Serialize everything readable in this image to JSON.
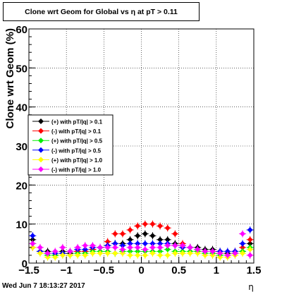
{
  "chart_data": {
    "type": "scatter",
    "title": "Clone wrt Geom for Global vs   η at pT > 0.11",
    "xlabel": "η",
    "ylabel": "Clone wrt Geom (%)",
    "xlim": [
      -1.5,
      1.5
    ],
    "ylim": [
      0,
      60
    ],
    "x_ticks": [
      "−1.5",
      "−1",
      "−0.5",
      "0",
      "0.5",
      "1",
      "1.5"
    ],
    "y_ticks": [
      "0",
      "10",
      "20",
      "30",
      "40",
      "50",
      "60"
    ],
    "grid": true,
    "legend_position": "center-left",
    "footer": "Wed Jun  7 18:13:27 2017",
    "series": [
      {
        "name": "(+) with pT/|q| > 0.1",
        "color": "#000000",
        "points": [
          [
            -1.45,
            6
          ],
          [
            -1.35,
            3
          ],
          [
            -1.25,
            3
          ],
          [
            -1.15,
            2
          ],
          [
            -1.05,
            3
          ],
          [
            -0.95,
            2.5
          ],
          [
            -0.85,
            3
          ],
          [
            -0.75,
            3
          ],
          [
            -0.65,
            3.5
          ],
          [
            -0.55,
            4
          ],
          [
            -0.45,
            4.5
          ],
          [
            -0.35,
            5
          ],
          [
            -0.25,
            5
          ],
          [
            -0.15,
            6
          ],
          [
            -0.05,
            7
          ],
          [
            0.05,
            7.5
          ],
          [
            0.15,
            7
          ],
          [
            0.25,
            6
          ],
          [
            0.35,
            6
          ],
          [
            0.45,
            5
          ],
          [
            0.55,
            4.5
          ],
          [
            0.65,
            4
          ],
          [
            0.75,
            4
          ],
          [
            0.85,
            3.5
          ],
          [
            0.95,
            3.5
          ],
          [
            1.05,
            3
          ],
          [
            1.15,
            2.5
          ],
          [
            1.25,
            2.5
          ],
          [
            1.35,
            3
          ],
          [
            1.45,
            5
          ]
        ]
      },
      {
        "name": "(-) with pT/|q| > 0.1",
        "color": "#ff0000",
        "points": [
          [
            -1.45,
            4
          ],
          [
            -1.35,
            3
          ],
          [
            -1.25,
            2.5
          ],
          [
            -1.15,
            2
          ],
          [
            -1.05,
            2.5
          ],
          [
            -0.95,
            3
          ],
          [
            -0.85,
            3
          ],
          [
            -0.75,
            3
          ],
          [
            -0.65,
            3.5
          ],
          [
            -0.55,
            4
          ],
          [
            -0.45,
            5.5
          ],
          [
            -0.35,
            7.5
          ],
          [
            -0.25,
            7.5
          ],
          [
            -0.15,
            8.5
          ],
          [
            -0.05,
            9.5
          ],
          [
            0.05,
            10
          ],
          [
            0.15,
            10
          ],
          [
            0.25,
            9.5
          ],
          [
            0.35,
            9
          ],
          [
            0.45,
            7.5
          ],
          [
            0.55,
            5
          ],
          [
            0.65,
            4
          ],
          [
            0.75,
            3
          ],
          [
            0.85,
            3
          ],
          [
            0.95,
            3
          ],
          [
            1.05,
            2.5
          ],
          [
            1.15,
            2
          ],
          [
            1.25,
            3
          ],
          [
            1.35,
            4
          ],
          [
            1.45,
            6
          ]
        ]
      },
      {
        "name": "(+) with pT/|q| > 0.5",
        "color": "#00ee00",
        "points": [
          [
            -1.45,
            5
          ],
          [
            -1.35,
            3
          ],
          [
            -1.25,
            2
          ],
          [
            -1.15,
            2
          ],
          [
            -1.05,
            2.5
          ],
          [
            -0.95,
            2
          ],
          [
            -0.85,
            2.5
          ],
          [
            -0.75,
            2.5
          ],
          [
            -0.65,
            3
          ],
          [
            -0.55,
            3
          ],
          [
            -0.45,
            3
          ],
          [
            -0.35,
            2.5
          ],
          [
            -0.25,
            3
          ],
          [
            -0.15,
            3
          ],
          [
            -0.05,
            3
          ],
          [
            0.05,
            3
          ],
          [
            0.15,
            3
          ],
          [
            0.25,
            3
          ],
          [
            0.35,
            3.5
          ],
          [
            0.45,
            3
          ],
          [
            0.55,
            3
          ],
          [
            0.65,
            3
          ],
          [
            0.75,
            3
          ],
          [
            0.85,
            2.5
          ],
          [
            0.95,
            2.5
          ],
          [
            1.05,
            2
          ],
          [
            1.15,
            2
          ],
          [
            1.25,
            2.5
          ],
          [
            1.35,
            3
          ],
          [
            1.45,
            4
          ]
        ]
      },
      {
        "name": "(-) with pT/|q| > 0.5",
        "color": "#0000ff",
        "points": [
          [
            -1.45,
            7
          ],
          [
            -1.35,
            3
          ],
          [
            -1.25,
            2.5
          ],
          [
            -1.15,
            2.5
          ],
          [
            -1.05,
            2.5
          ],
          [
            -0.95,
            3
          ],
          [
            -0.85,
            3.5
          ],
          [
            -0.75,
            3.5
          ],
          [
            -0.65,
            4
          ],
          [
            -0.55,
            4
          ],
          [
            -0.45,
            4.5
          ],
          [
            -0.35,
            5
          ],
          [
            -0.25,
            4.5
          ],
          [
            -0.15,
            5
          ],
          [
            -0.05,
            5
          ],
          [
            0.05,
            5
          ],
          [
            0.15,
            5
          ],
          [
            0.25,
            5
          ],
          [
            0.35,
            5
          ],
          [
            0.45,
            4.5
          ],
          [
            0.55,
            4
          ],
          [
            0.65,
            4
          ],
          [
            0.75,
            3.5
          ],
          [
            0.85,
            3
          ],
          [
            0.95,
            3
          ],
          [
            1.05,
            3
          ],
          [
            1.15,
            3
          ],
          [
            1.25,
            3
          ],
          [
            1.35,
            5
          ],
          [
            1.45,
            8.5
          ]
        ]
      },
      {
        "name": "(+) with pT/|q| > 1.0",
        "color": "#ffff00",
        "points": [
          [
            -1.45,
            4
          ],
          [
            -1.35,
            2.5
          ],
          [
            -1.25,
            1.5
          ],
          [
            -1.15,
            1.5
          ],
          [
            -1.05,
            2
          ],
          [
            -0.95,
            2
          ],
          [
            -0.85,
            2
          ],
          [
            -0.75,
            2
          ],
          [
            -0.65,
            2.5
          ],
          [
            -0.55,
            2.5
          ],
          [
            -0.45,
            2.5
          ],
          [
            -0.35,
            2.5
          ],
          [
            -0.25,
            2.5
          ],
          [
            -0.15,
            2
          ],
          [
            -0.05,
            2
          ],
          [
            0.05,
            2
          ],
          [
            0.15,
            2.5
          ],
          [
            0.25,
            2
          ],
          [
            0.35,
            2
          ],
          [
            0.45,
            2.5
          ],
          [
            0.55,
            2.5
          ],
          [
            0.65,
            2.5
          ],
          [
            0.75,
            2.5
          ],
          [
            0.85,
            2
          ],
          [
            0.95,
            2
          ],
          [
            1.05,
            1.5
          ],
          [
            1.15,
            1.5
          ],
          [
            1.25,
            2
          ],
          [
            1.35,
            2.5
          ],
          [
            1.45,
            3.5
          ]
        ]
      },
      {
        "name": "(-) with pT/|q| > 1.0",
        "color": "#ff00ff",
        "points": [
          [
            -1.45,
            5
          ],
          [
            -1.35,
            4
          ],
          [
            -1.25,
            2.5
          ],
          [
            -1.15,
            3
          ],
          [
            -1.05,
            4
          ],
          [
            -0.95,
            3
          ],
          [
            -0.85,
            4
          ],
          [
            -0.75,
            4.5
          ],
          [
            -0.65,
            4.5
          ],
          [
            -0.55,
            4
          ],
          [
            -0.45,
            4
          ],
          [
            -0.35,
            4
          ],
          [
            -0.25,
            3.5
          ],
          [
            -0.15,
            4
          ],
          [
            -0.05,
            4
          ],
          [
            0.05,
            3.5
          ],
          [
            0.15,
            4
          ],
          [
            0.25,
            4
          ],
          [
            0.35,
            4.5
          ],
          [
            0.45,
            4.5
          ],
          [
            0.55,
            4.5
          ],
          [
            0.65,
            4
          ],
          [
            0.75,
            3.5
          ],
          [
            0.85,
            3
          ],
          [
            0.95,
            3
          ],
          [
            1.05,
            2.5
          ],
          [
            1.15,
            2
          ],
          [
            1.25,
            2.5
          ],
          [
            1.35,
            7.5
          ],
          [
            1.45,
            2
          ]
        ]
      }
    ]
  }
}
